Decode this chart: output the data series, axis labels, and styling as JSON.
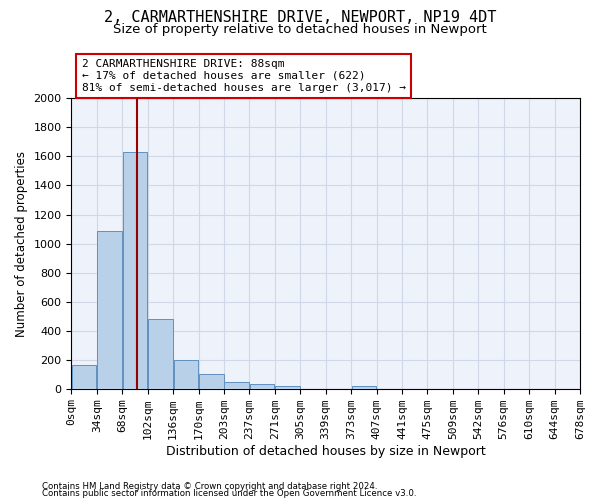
{
  "title": "2, CARMARTHENSHIRE DRIVE, NEWPORT, NP19 4DT",
  "subtitle": "Size of property relative to detached houses in Newport",
  "xlabel": "Distribution of detached houses by size in Newport",
  "ylabel": "Number of detached properties",
  "footnote1": "Contains HM Land Registry data © Crown copyright and database right 2024.",
  "footnote2": "Contains public sector information licensed under the Open Government Licence v3.0.",
  "bar_values": [
    165,
    1085,
    1630,
    480,
    200,
    100,
    45,
    35,
    20,
    0,
    0,
    20,
    0,
    0,
    0,
    0,
    0,
    0,
    0,
    0
  ],
  "bin_labels": [
    "0sqm",
    "34sqm",
    "68sqm",
    "102sqm",
    "136sqm",
    "170sqm",
    "203sqm",
    "237sqm",
    "271sqm",
    "305sqm",
    "339sqm",
    "373sqm",
    "407sqm",
    "441sqm",
    "475sqm",
    "509sqm",
    "542sqm",
    "576sqm",
    "610sqm",
    "644sqm",
    "678sqm"
  ],
  "bar_color": "#b8d0e8",
  "bar_edge_color": "#6090c0",
  "vline_x_bin": 2.6,
  "vline_color": "#990000",
  "annotation_text": "2 CARMARTHENSHIRE DRIVE: 88sqm\n← 17% of detached houses are smaller (622)\n81% of semi-detached houses are larger (3,017) →",
  "annotation_box_color": "#ffffff",
  "annotation_box_edge": "#cc0000",
  "ylim": [
    0,
    2000
  ],
  "yticks": [
    0,
    200,
    400,
    600,
    800,
    1000,
    1200,
    1400,
    1600,
    1800,
    2000
  ],
  "grid_color": "#d0d8e8",
  "bg_color": "#eef2fa",
  "title_fontsize": 11,
  "subtitle_fontsize": 9.5,
  "xlabel_fontsize": 9,
  "ylabel_fontsize": 8.5,
  "tick_fontsize": 8,
  "annot_fontsize": 8
}
